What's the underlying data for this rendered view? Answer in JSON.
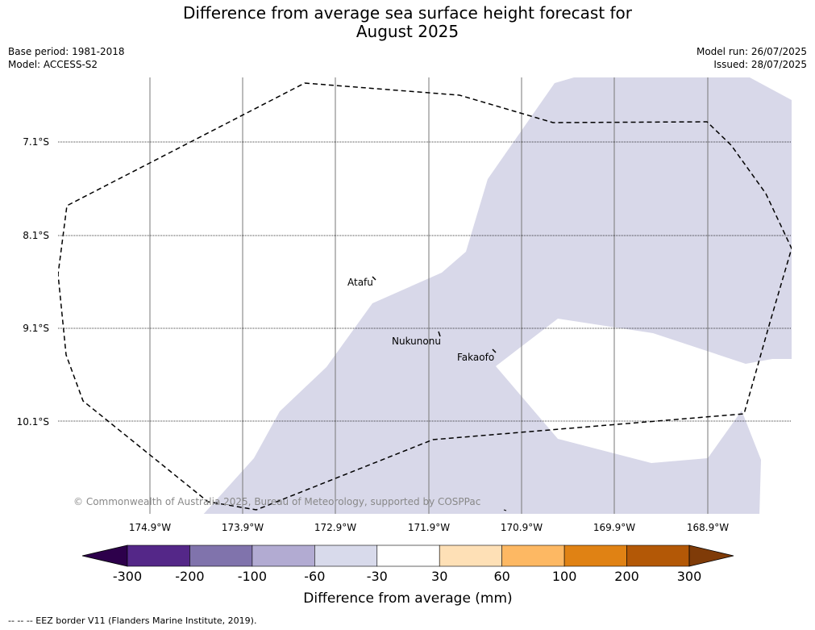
{
  "title": "Difference from average sea surface height forecast for\nAugust 2025",
  "meta_left": {
    "base_period": "Base period: 1981-2018",
    "model": "Model: ACCESS-S2"
  },
  "meta_right": {
    "model_run": "Model run: 26/07/2025",
    "issued": "Issued: 28/07/2025"
  },
  "map": {
    "lat_labels": [
      "7.1°S",
      "8.1°S",
      "9.1°S",
      "10.1°S"
    ],
    "lon_labels": [
      "174.9°W",
      "173.9°W",
      "172.9°W",
      "171.9°W",
      "170.9°W",
      "169.9°W",
      "168.9°W"
    ],
    "places": [
      {
        "name": "Atafu"
      },
      {
        "name": "Nukunonu"
      },
      {
        "name": "Fakaofo"
      }
    ],
    "copyright": "© Commonwealth of Australia 2025, Bureau of Meteorology, supported by COSPPac",
    "fill_color": "#d8d8e9",
    "eez_line_color": "#000000",
    "grid_color": "#777777"
  },
  "colorbar": {
    "title": "Difference from average (mm)",
    "labels": [
      "-300",
      "-200",
      "-100",
      "-60",
      "-30",
      "30",
      "60",
      "100",
      "200",
      "300"
    ],
    "under_color": "#2d004b",
    "over_color": "#7f3b08",
    "colors": [
      "#542788",
      "#8073ac",
      "#b2abd2",
      "#d8daeb",
      "#ffffff",
      "#fee0b6",
      "#fdb863",
      "#e08214",
      "#b35806"
    ]
  },
  "footnote": "--  --  -- EEZ border V11 (Flanders Marine Institute, 2019)."
}
